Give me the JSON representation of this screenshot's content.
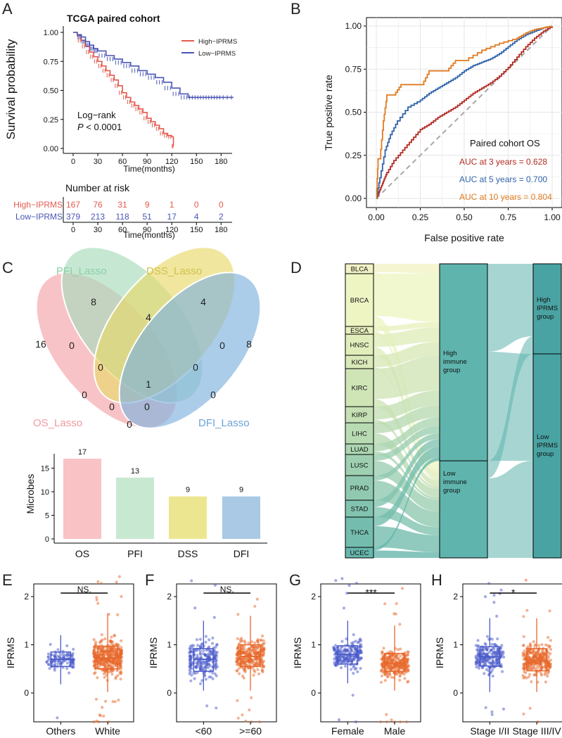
{
  "panels": {
    "A": {
      "letter": "A",
      "title": "TCGA paired cohort",
      "ylabel": "Survival probability",
      "xlabel": "Time(months)",
      "yticks": [
        "0.00",
        "0.25",
        "0.50",
        "0.75",
        "1.00"
      ],
      "xticks": [
        "0",
        "30",
        "60",
        "90",
        "120",
        "150",
        "180"
      ],
      "legend": [
        {
          "label": "High−IPRMS",
          "color": "#e45a4e"
        },
        {
          "label": "Low−IPRMS",
          "color": "#4a55b5"
        }
      ],
      "logrank_line1": "Log−rank",
      "logrank_p": "P",
      "logrank_value": " < 0.0001",
      "risk_title": "Number at risk",
      "risk_xlabel": "Time(months)",
      "risk_rows": [
        {
          "label": "High−IPRMS",
          "color": "#e45a4e",
          "values": [
            "167",
            "76",
            "31",
            "9",
            "1",
            "0",
            "0"
          ]
        },
        {
          "label": "Low−IPRMS",
          "color": "#4a55b5",
          "values": [
            "379",
            "213",
            "118",
            "51",
            "17",
            "4",
            "2"
          ]
        }
      ]
    },
    "B": {
      "letter": "B",
      "ylabel": "True positive rate",
      "xlabel": "False positive rate",
      "ticks": [
        "0.00",
        "0.25",
        "0.50",
        "0.75",
        "1.00"
      ],
      "legend_title": "Paired cohort OS",
      "auc": [
        {
          "label": "AUC at 3 years = 0.628",
          "color": "#b22a22"
        },
        {
          "label": "AUC at 5 years = 0.700",
          "color": "#2f63ab"
        },
        {
          "label": "AUC at 10 years = 0.804",
          "color": "#e07b22"
        }
      ]
    },
    "C": {
      "letter": "C",
      "sets": [
        {
          "label": "OS_Lasso",
          "color": "#f4a3a8"
        },
        {
          "label": "PFI_Lasso",
          "color": "#a7dbbc"
        },
        {
          "label": "DSS_Lasso",
          "color": "#e8d96a"
        },
        {
          "label": "DFI_Lasso",
          "color": "#7fb2dd"
        }
      ],
      "counts": [
        "16",
        "8",
        "4",
        "8",
        "0",
        "4",
        "0",
        "0",
        "0",
        "0",
        "1",
        "0",
        "0",
        "0",
        "0"
      ],
      "bar_ylabel": "Microbes",
      "bar_yticks": [
        "0",
        "5",
        "10",
        "15"
      ]
    },
    "D": {
      "letter": "D",
      "cancers": [
        "BLCA",
        "BRCA",
        "ESCA",
        "HNSC",
        "KICH",
        "KIRC",
        "KIRP",
        "LIHC",
        "LUAD",
        "LUSC",
        "PRAD",
        "STAD",
        "THCA",
        "UCEC"
      ],
      "immune_high": "High immune group",
      "immune_low": "Low immune group",
      "iprms_high": "High IPRMS group",
      "iprms_low": "Low IPRMS group"
    },
    "box_panels": [
      {
        "letter": "E",
        "ylabel": "IPRMS",
        "sig": "NS.",
        "groups": [
          "Others",
          "White"
        ]
      },
      {
        "letter": "F",
        "ylabel": "IPRMS",
        "sig": "NS.",
        "groups": [
          "<60",
          ">=60"
        ]
      },
      {
        "letter": "G",
        "ylabel": "IPRMS",
        "sig": "***",
        "groups": [
          "Female",
          "Male"
        ]
      },
      {
        "letter": "H",
        "ylabel": "IPRMS",
        "sig": "*",
        "groups": [
          "Stage I/II",
          "Stage III/IV"
        ]
      }
    ],
    "box_yticks": [
      "0",
      "1",
      "2"
    ]
  },
  "chart_data": [
    {
      "type": "line",
      "title": "TCGA paired cohort",
      "xlabel": "Time(months)",
      "ylabel": "Survival probability",
      "xlim": [
        0,
        200
      ],
      "ylim": [
        0,
        1
      ],
      "series": [
        {
          "name": "High−IPRMS",
          "color": "#e45a4e",
          "x": [
            0,
            5,
            10,
            15,
            20,
            25,
            30,
            35,
            40,
            45,
            50,
            55,
            60,
            65,
            70,
            75,
            80,
            85,
            90,
            95,
            100,
            105,
            110,
            115,
            120,
            122
          ],
          "y": [
            1.0,
            0.97,
            0.93,
            0.88,
            0.83,
            0.79,
            0.75,
            0.71,
            0.67,
            0.63,
            0.59,
            0.54,
            0.48,
            0.44,
            0.4,
            0.37,
            0.34,
            0.31,
            0.26,
            0.23,
            0.2,
            0.17,
            0.13,
            0.11,
            0.1,
            0.02
          ]
        },
        {
          "name": "Low−IPRMS",
          "color": "#4a55b5",
          "x": [
            0,
            5,
            10,
            15,
            20,
            25,
            30,
            40,
            50,
            60,
            70,
            80,
            90,
            100,
            110,
            120,
            130,
            140,
            150,
            160,
            170,
            180,
            195
          ],
          "y": [
            1.0,
            0.98,
            0.96,
            0.92,
            0.89,
            0.86,
            0.84,
            0.8,
            0.77,
            0.74,
            0.71,
            0.67,
            0.64,
            0.61,
            0.57,
            0.52,
            0.47,
            0.44,
            0.44,
            0.44,
            0.44,
            0.44,
            0.44
          ]
        }
      ],
      "annotation": "Log−rank P < 0.0001"
    },
    {
      "type": "line",
      "title": "Paired cohort OS",
      "xlabel": "False positive rate",
      "ylabel": "True positive rate",
      "xlim": [
        0,
        1
      ],
      "ylim": [
        0,
        1
      ],
      "series": [
        {
          "name": "AUC at 3 years = 0.628",
          "color": "#b22a22",
          "x": [
            0,
            0.02,
            0.04,
            0.06,
            0.1,
            0.15,
            0.2,
            0.25,
            0.3,
            0.35,
            0.4,
            0.45,
            0.5,
            0.55,
            0.6,
            0.65,
            0.7,
            0.75,
            0.8,
            0.85,
            0.9,
            0.95,
            1.0
          ],
          "y": [
            0,
            0.05,
            0.1,
            0.15,
            0.22,
            0.28,
            0.34,
            0.4,
            0.43,
            0.47,
            0.5,
            0.53,
            0.57,
            0.61,
            0.64,
            0.67,
            0.71,
            0.76,
            0.82,
            0.88,
            0.93,
            0.97,
            1.0
          ]
        },
        {
          "name": "AUC at 5 years = 0.700",
          "color": "#2f63ab",
          "x": [
            0,
            0.02,
            0.05,
            0.08,
            0.12,
            0.18,
            0.25,
            0.3,
            0.35,
            0.4,
            0.45,
            0.5,
            0.55,
            0.6,
            0.65,
            0.7,
            0.75,
            0.8,
            0.85,
            0.9,
            0.95,
            1.0
          ],
          "y": [
            0,
            0.12,
            0.28,
            0.37,
            0.45,
            0.53,
            0.57,
            0.61,
            0.64,
            0.67,
            0.7,
            0.74,
            0.77,
            0.79,
            0.81,
            0.84,
            0.88,
            0.92,
            0.95,
            0.97,
            0.99,
            1.0
          ]
        },
        {
          "name": "AUC at 10 years = 0.804",
          "color": "#e07b22",
          "x": [
            0,
            0.01,
            0.02,
            0.04,
            0.06,
            0.1,
            0.14,
            0.2,
            0.26,
            0.3,
            0.4,
            0.45,
            0.5,
            0.6,
            0.7,
            0.8,
            0.85,
            0.9,
            0.95,
            1.0
          ],
          "y": [
            0,
            0.23,
            0.23,
            0.45,
            0.6,
            0.6,
            0.66,
            0.66,
            0.66,
            0.74,
            0.74,
            0.8,
            0.8,
            0.86,
            0.9,
            0.93,
            0.96,
            0.98,
            0.99,
            1.0
          ]
        }
      ]
    },
    {
      "type": "bar",
      "ylabel": "Microbes",
      "categories": [
        "OS",
        "PFI",
        "DSS",
        "DFI"
      ],
      "values": [
        17,
        13,
        9,
        9
      ],
      "colors": [
        "#f9c2c5",
        "#c8e8d2",
        "#ede690",
        "#a9c9e4"
      ],
      "ylim": [
        0,
        18
      ]
    },
    {
      "type": "box",
      "ylabel": "IPRMS",
      "ylim": [
        -0.7,
        2.6
      ],
      "panels": [
        {
          "categories": [
            "Others",
            "White"
          ],
          "median": [
            0.7,
            0.72
          ],
          "q1": [
            0.55,
            0.5
          ],
          "q3": [
            0.85,
            0.97
          ],
          "whisker_low": [
            0.18,
            0.02
          ],
          "whisker_high": [
            1.2,
            1.65
          ],
          "significance": "NS."
        },
        {
          "categories": [
            "<60",
            ">=60"
          ],
          "median": [
            0.7,
            0.76
          ],
          "q1": [
            0.45,
            0.55
          ],
          "q3": [
            0.92,
            1.0
          ],
          "whisker_low": [
            0.05,
            0.05
          ],
          "whisker_high": [
            1.5,
            1.6
          ],
          "significance": "NS."
        },
        {
          "categories": [
            "Female",
            "Male"
          ],
          "median": [
            0.8,
            0.62
          ],
          "q1": [
            0.6,
            0.45
          ],
          "q3": [
            0.98,
            0.82
          ],
          "whisker_low": [
            0.2,
            0.05
          ],
          "whisker_high": [
            1.5,
            1.4
          ],
          "significance": "***"
        },
        {
          "categories": [
            "Stage I/II",
            "Stage III/IV"
          ],
          "median": [
            0.75,
            0.68
          ],
          "q1": [
            0.56,
            0.46
          ],
          "q3": [
            0.96,
            0.92
          ],
          "whisker_low": [
            0.02,
            0.02
          ],
          "whisker_high": [
            1.55,
            1.55
          ],
          "significance": "*"
        }
      ]
    }
  ]
}
